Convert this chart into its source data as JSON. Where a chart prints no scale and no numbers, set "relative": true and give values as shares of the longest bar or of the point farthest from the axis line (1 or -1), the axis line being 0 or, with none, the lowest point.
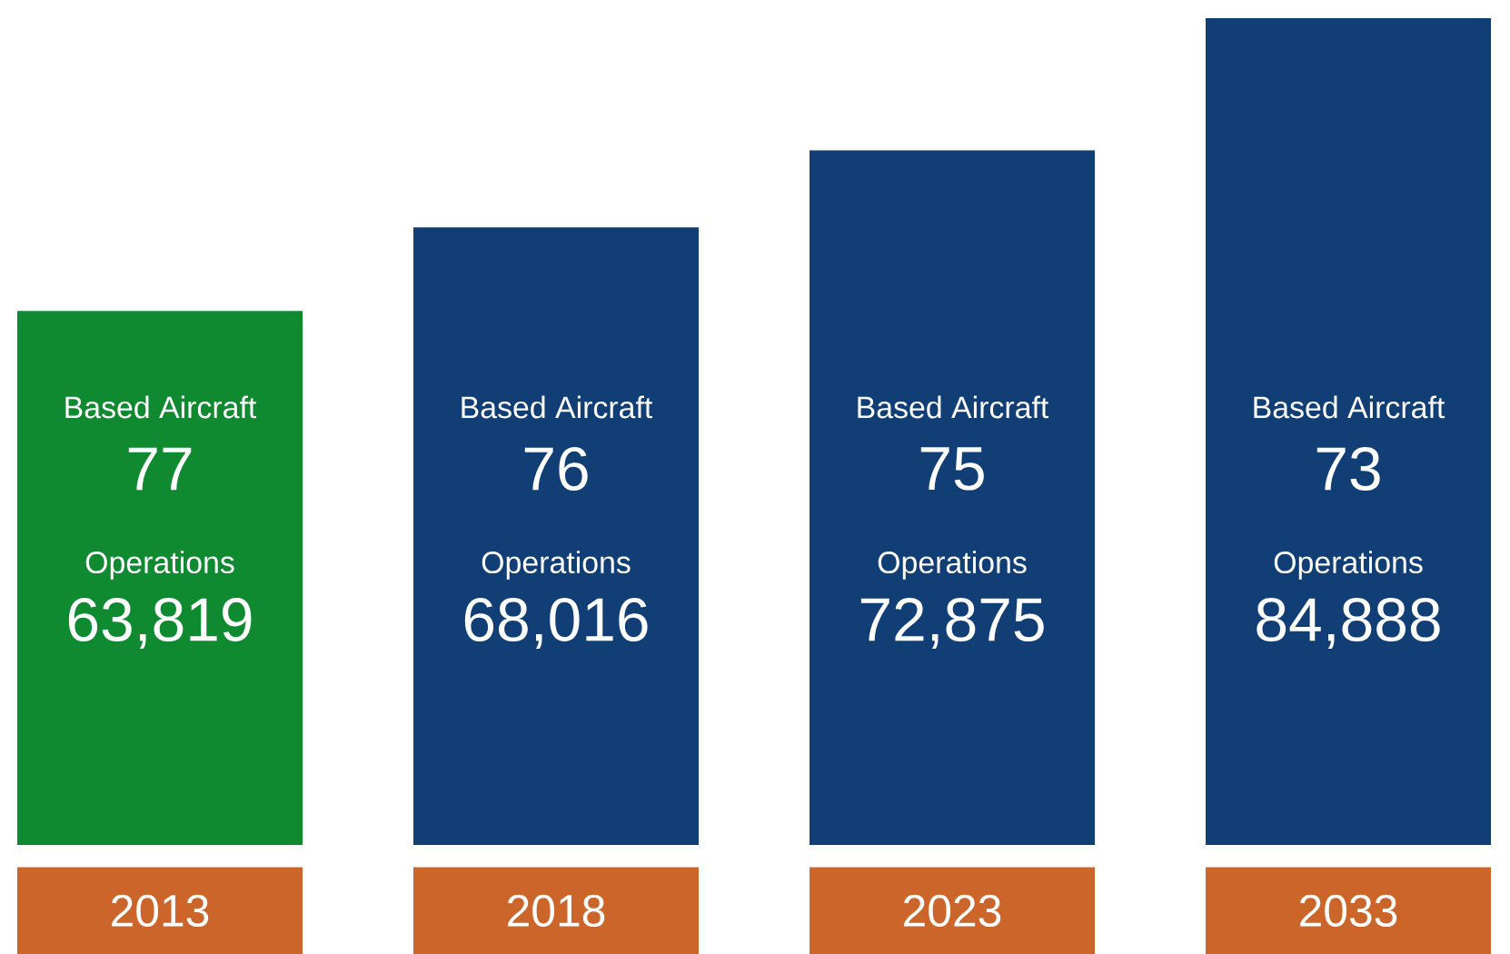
{
  "chart_data": {
    "type": "bar",
    "relative": true,
    "categories": [
      "2013",
      "2018",
      "2023",
      "2033"
    ],
    "values": [
      0.646,
      0.747,
      0.84,
      1
    ],
    "colors": [
      "#108a30",
      "#113f75",
      "#113f75",
      "#113f75"
    ],
    "annotations": [
      "Based Aircraft",
      "77",
      "Operations",
      "63,819",
      "Based Aircraft",
      "76",
      "Operations",
      "68,016",
      "Based Aircraft",
      "75",
      "Operations",
      "72,875",
      "Based Aircraft",
      "73",
      "Operations",
      "84,888"
    ]
  }
}
